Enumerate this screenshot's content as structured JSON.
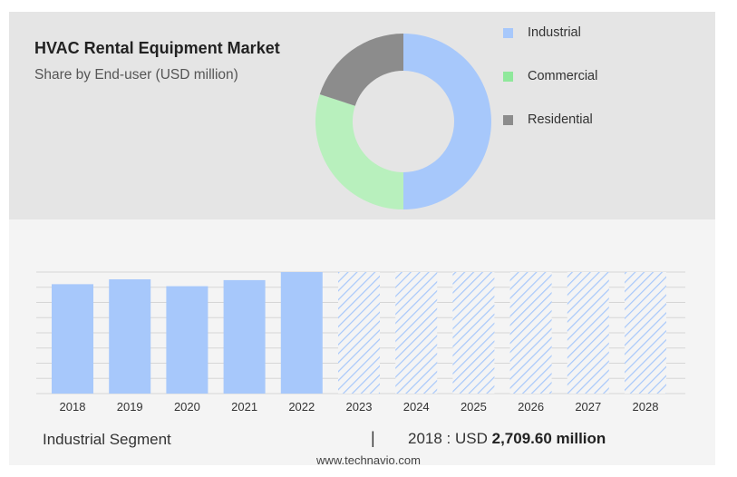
{
  "header": {
    "title": "HVAC Rental Equipment Market",
    "subtitle": "Share by End-user (USD million)"
  },
  "legend": [
    {
      "label": "Industrial",
      "color": "#a7c8fb"
    },
    {
      "label": "Commercial",
      "color": "#8fe89b"
    },
    {
      "label": "Residential",
      "color": "#8c8c8c"
    }
  ],
  "footer": {
    "segment": "Industrial Segment",
    "separator": "|",
    "year_label": "2018 : USD ",
    "value_label": "2,709.60 million",
    "source": "www.technavio.com"
  },
  "chart_data": [
    {
      "type": "pie",
      "variant": "donut",
      "title": "HVAC Rental Equipment Market",
      "subtitle": "Share by End-user (USD million)",
      "legend_position": "right",
      "slices": [
        {
          "name": "Industrial",
          "value": 50,
          "color": "#a7c8fb"
        },
        {
          "name": "Commercial",
          "value": 30,
          "color": "#b8f0bd"
        },
        {
          "name": "Residential",
          "value": 20,
          "color": "#8c8c8c"
        }
      ]
    },
    {
      "type": "bar",
      "series_name": "Industrial Segment",
      "categories": [
        "2018",
        "2019",
        "2020",
        "2021",
        "2022",
        "2023",
        "2024",
        "2025",
        "2026",
        "2027",
        "2028"
      ],
      "values": [
        2709.6,
        2830,
        2660,
        2810,
        3010,
        3010,
        3010,
        3010,
        3010,
        3010,
        3010
      ],
      "forecast_from": "2023",
      "ylim": [
        0,
        3010
      ],
      "grid": true,
      "color": "#a7c8fb"
    }
  ]
}
